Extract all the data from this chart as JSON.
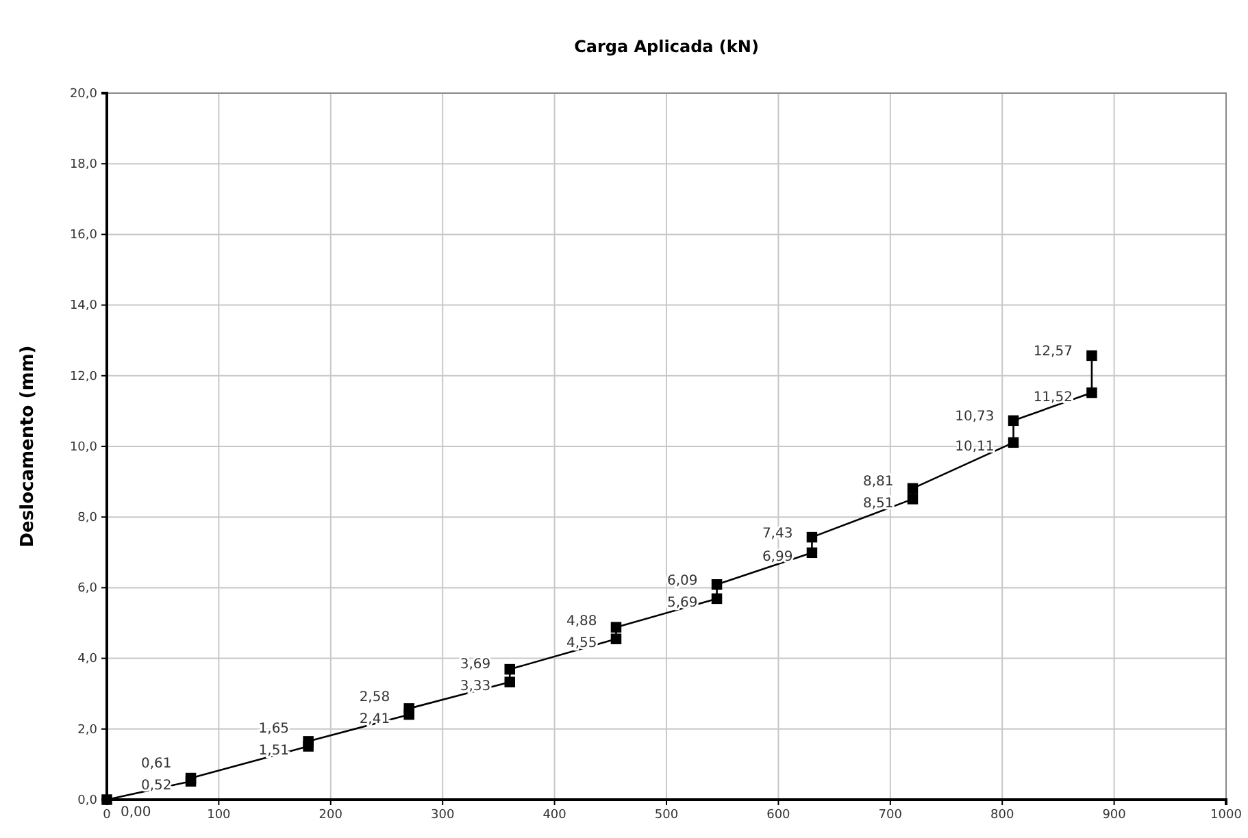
{
  "chart_data": {
    "type": "line",
    "title": "Carga Aplicada (kN)",
    "ylabel": "Deslocamento (mm)",
    "x": [
      0,
      75,
      75,
      180,
      180,
      270,
      270,
      360,
      360,
      455,
      455,
      545,
      545,
      630,
      630,
      720,
      720,
      810,
      810,
      880,
      880
    ],
    "series": [
      {
        "color": "#000000",
        "values": [
          0,
          0.52,
          0.61,
          1.51,
          1.65,
          2.41,
          2.58,
          3.33,
          3.69,
          4.55,
          4.88,
          5.69,
          6.09,
          6.99,
          7.43,
          8.51,
          8.81,
          10.11,
          10.73,
          11.52,
          12.57
        ],
        "value_labels": [
          "0,00",
          "0,52",
          "0,61",
          "1,51",
          "1,65",
          "2,41",
          "2,58",
          "3,33",
          "3,69",
          "4,55",
          "4,88",
          "5,69",
          "6,09",
          "6,99",
          "7,43",
          "8,51",
          "8,81",
          "10,11",
          "10,73",
          "11,52",
          "12,57"
        ]
      }
    ],
    "xlim": [
      0,
      1000
    ],
    "xticks": [
      0,
      100,
      200,
      300,
      400,
      500,
      600,
      700,
      800,
      900,
      1000
    ],
    "ylim": [
      0,
      20
    ],
    "yticks": [
      {
        "value": 0,
        "label": "0,0"
      },
      {
        "value": 2,
        "label": "2,0"
      },
      {
        "value": 4,
        "label": "4,0"
      },
      {
        "value": 6,
        "label": "6,0"
      },
      {
        "value": 8,
        "label": "8,0"
      },
      {
        "value": 10,
        "label": "10,0"
      },
      {
        "value": 12,
        "label": "12,0"
      },
      {
        "value": 14,
        "label": "14,0"
      },
      {
        "value": 16,
        "label": "16,0"
      },
      {
        "value": 18,
        "label": "18,0"
      },
      {
        "value": 20,
        "label": "20,0"
      }
    ],
    "grid": true,
    "marker": "square",
    "line_style": "solid"
  }
}
